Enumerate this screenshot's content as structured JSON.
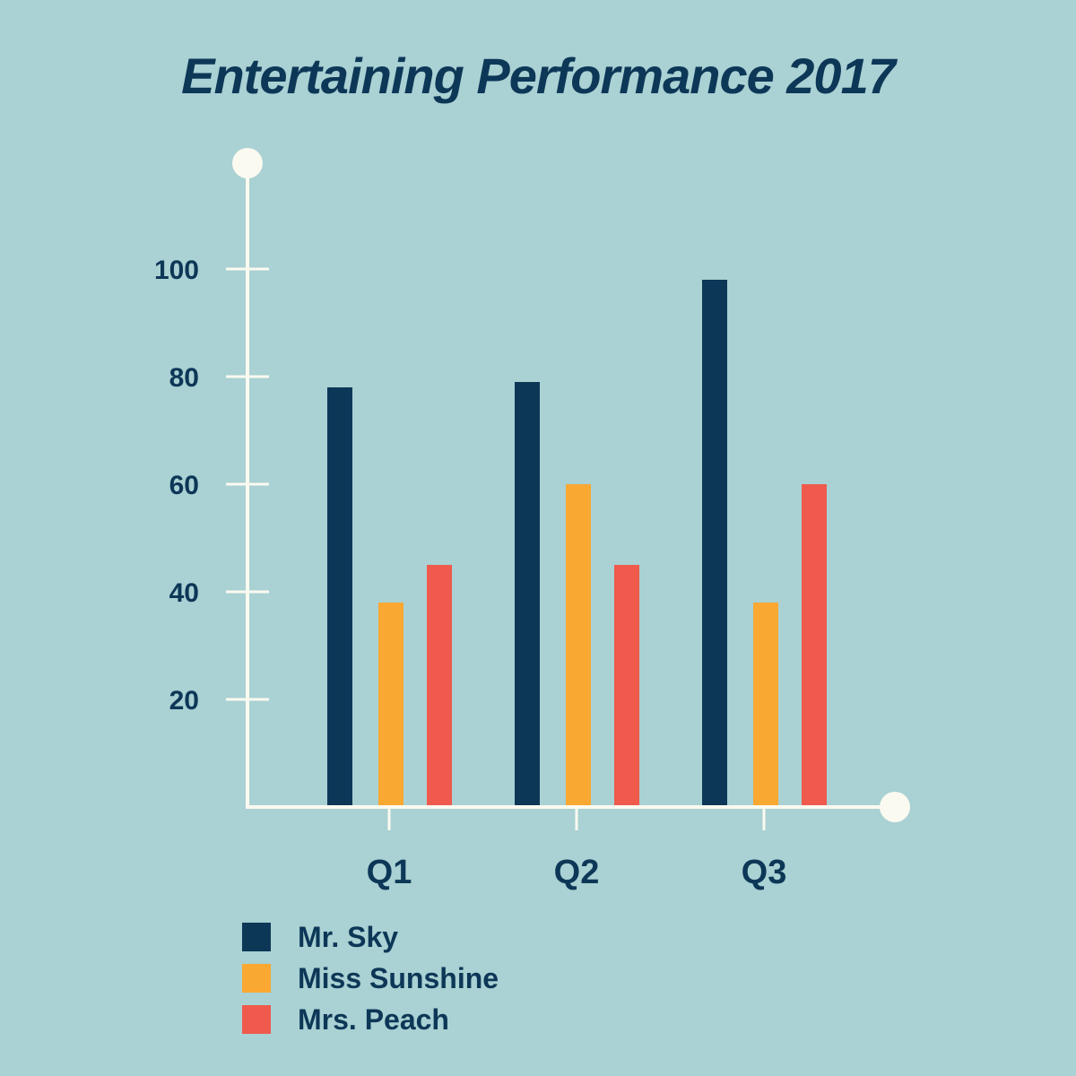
{
  "chart_data": {
    "type": "bar",
    "title": "Entertaining Performance 2017",
    "xlabel": "",
    "ylabel": "",
    "categories": [
      "Q1",
      "Q2",
      "Q3"
    ],
    "y_ticks": [
      20,
      40,
      60,
      80,
      100
    ],
    "ylim": [
      0,
      120
    ],
    "grid": false,
    "legend_position": "bottom-left",
    "series": [
      {
        "name": "Mr. Sky",
        "color": "#0d3757",
        "values": [
          78,
          79,
          98
        ]
      },
      {
        "name": "Miss Sunshine",
        "color": "#f9a832",
        "values": [
          38,
          60,
          38
        ]
      },
      {
        "name": "Mrs. Peach",
        "color": "#ef5a4c",
        "values": [
          45,
          45,
          60
        ]
      }
    ],
    "axis_color": "#fbfaf0",
    "background": "#aad1d3"
  }
}
